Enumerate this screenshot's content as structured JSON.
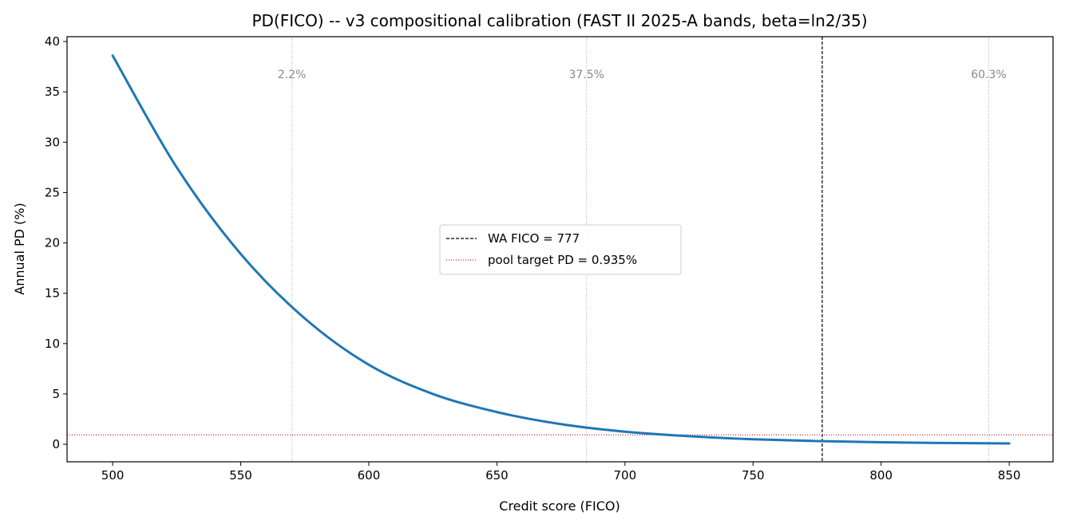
{
  "chart_data": {
    "type": "line",
    "title": "PD(FICO) -- v3 compositional calibration (FAST II 2025-A bands, beta=ln2/35)",
    "xlabel": "Credit score (FICO)",
    "ylabel": "Annual PD (%)",
    "xlim": [
      482.2,
      867.1
    ],
    "ylim": [
      -1.74,
      40.48
    ],
    "xticks": [
      500,
      550,
      600,
      650,
      700,
      750,
      800,
      850
    ],
    "yticks": [
      0,
      5,
      10,
      15,
      20,
      25,
      30,
      35,
      40
    ],
    "grid": false,
    "series": [
      {
        "color": "#1f77b4",
        "x": [
          500,
          525,
          550,
          575,
          600,
          625,
          650,
          675,
          700,
          725,
          750,
          775,
          800,
          825,
          850
        ],
        "y": [
          38.6,
          27.5,
          18.9,
          12.5,
          7.9,
          5.0,
          3.2,
          2.0,
          1.25,
          0.8,
          0.5,
          0.32,
          0.2,
          0.13,
          0.08
        ]
      }
    ],
    "band_lines": [
      {
        "x": 570,
        "label": "2.2%"
      },
      {
        "x": 685,
        "label": "37.5%"
      },
      {
        "x": 842,
        "label": "60.3%"
      }
    ],
    "reference_lines": [
      {
        "orientation": "vertical",
        "x": 777,
        "style": "dashed",
        "color": "#000000",
        "label": "WA FICO = 777"
      },
      {
        "orientation": "horizontal",
        "y": 0.935,
        "style": "dotted",
        "color": "#d62728",
        "label": "pool target PD = 0.935%"
      }
    ],
    "legend_position": "center"
  }
}
